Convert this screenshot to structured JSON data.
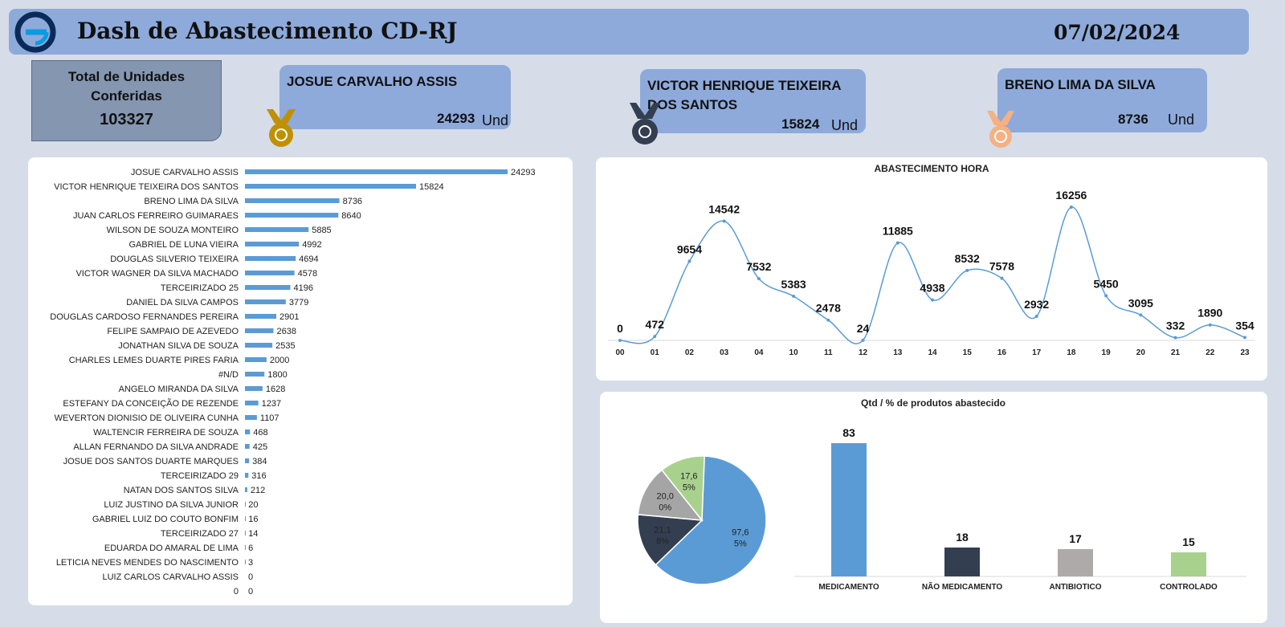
{
  "header": {
    "title": "Dash de Abastecimento CD-RJ",
    "date": "07/02/2024"
  },
  "colors": {
    "header_bg": "#8eaadb",
    "bar": "#5b9bd5",
    "gold": "#bf9000",
    "silver": "#333f50",
    "bronze": "#f4b183"
  },
  "total": {
    "label": "Total de Unidades Conferidas",
    "value": "103327"
  },
  "podium": [
    {
      "name": "JOSUE CARVALHO ASSIS",
      "value": "24293",
      "unit": "Und",
      "medal": "gold-medal-icon"
    },
    {
      "name": "VICTOR HENRIQUE TEIXEIRA DOS SANTOS",
      "value": "15824",
      "unit": "Und",
      "medal": "silver-medal-icon"
    },
    {
      "name": "BRENO LIMA DA SILVA",
      "value": "8736",
      "unit": "Und",
      "medal": "bronze-medal-icon"
    }
  ],
  "chart_data": [
    {
      "type": "bar",
      "orientation": "horizontal",
      "title": "",
      "categories": [
        "JOSUE CARVALHO ASSIS",
        "VICTOR HENRIQUE TEIXEIRA DOS SANTOS",
        "BRENO LIMA DA SILVA",
        "JUAN CARLOS FERREIRO GUIMARAES",
        "WILSON DE SOUZA MONTEIRO",
        "GABRIEL DE LUNA VIEIRA",
        "DOUGLAS SILVERIO TEIXEIRA",
        "VICTOR WAGNER DA SILVA MACHADO",
        "TERCEIRIZADO 25",
        "DANIEL DA SILVA CAMPOS",
        "DOUGLAS CARDOSO FERNANDES PEREIRA",
        "FELIPE SAMPAIO DE AZEVEDO",
        "JONATHAN SILVA DE SOUZA",
        "CHARLES LEMES DUARTE PIRES FARIA",
        "#N/D",
        "ANGELO MIRANDA DA SILVA",
        "ESTEFANY DA CONCEIÇÃO DE REZENDE",
        "WEVERTON DIONISIO DE OLIVEIRA CUNHA",
        "WALTENCIR FERREIRA DE SOUZA",
        "ALLAN FERNANDO DA SILVA ANDRADE",
        "JOSUE DOS SANTOS DUARTE MARQUES",
        "TERCEIRIZADO 29",
        "NATAN DOS SANTOS SILVA",
        "LUIZ JUSTINO DA SILVA JUNIOR",
        "GABRIEL LUIZ DO COUTO BONFIM",
        "TERCEIRIZADO 27",
        "EDUARDA DO AMARAL DE LIMA",
        "LETICIA NEVES MENDES DO NASCIMENTO",
        "LUIZ CARLOS CARVALHO ASSIS",
        "0"
      ],
      "values": [
        24293,
        15824,
        8736,
        8640,
        5885,
        4992,
        4694,
        4578,
        4196,
        3779,
        2901,
        2638,
        2535,
        2000,
        1800,
        1628,
        1237,
        1107,
        468,
        425,
        384,
        316,
        212,
        20,
        16,
        14,
        6,
        3,
        0,
        0
      ]
    },
    {
      "type": "line",
      "title": "ABASTECIMENTO HORA",
      "x": [
        "00",
        "01",
        "02",
        "03",
        "04",
        "10",
        "11",
        "12",
        "13",
        "14",
        "15",
        "16",
        "17",
        "18",
        "19",
        "20",
        "21",
        "22",
        "23"
      ],
      "values": [
        0,
        472,
        9654,
        14542,
        7532,
        5383,
        2478,
        24,
        11885,
        4938,
        8532,
        7578,
        2932,
        16256,
        5450,
        3095,
        332,
        1890,
        354
      ]
    },
    {
      "type": "pie",
      "title": "Qtd / % de produtos abastecido",
      "slices": [
        {
          "label": "97,6\n5%",
          "color": "#5b9bd5",
          "share": 0.6279
        },
        {
          "label": "21,1\n8%",
          "color": "#333f50",
          "share": 0.1362
        },
        {
          "label": "20,0\n0%",
          "color": "#a5a5a5",
          "share": 0.1287
        },
        {
          "label": "17,6\n5%",
          "color": "#a9d18e",
          "share": 0.1136
        }
      ]
    },
    {
      "type": "bar",
      "title": "Qtd / % de produtos abastecido",
      "categories": [
        "MEDICAMENTO",
        "NÃO MEDICAMENTO",
        "ANTIBIOTICO",
        "CONTROLADO"
      ],
      "values": [
        83,
        18,
        17,
        15
      ],
      "colors": [
        "#5b9bd5",
        "#333f50",
        "#aeaaaa",
        "#a9d18e"
      ]
    }
  ]
}
